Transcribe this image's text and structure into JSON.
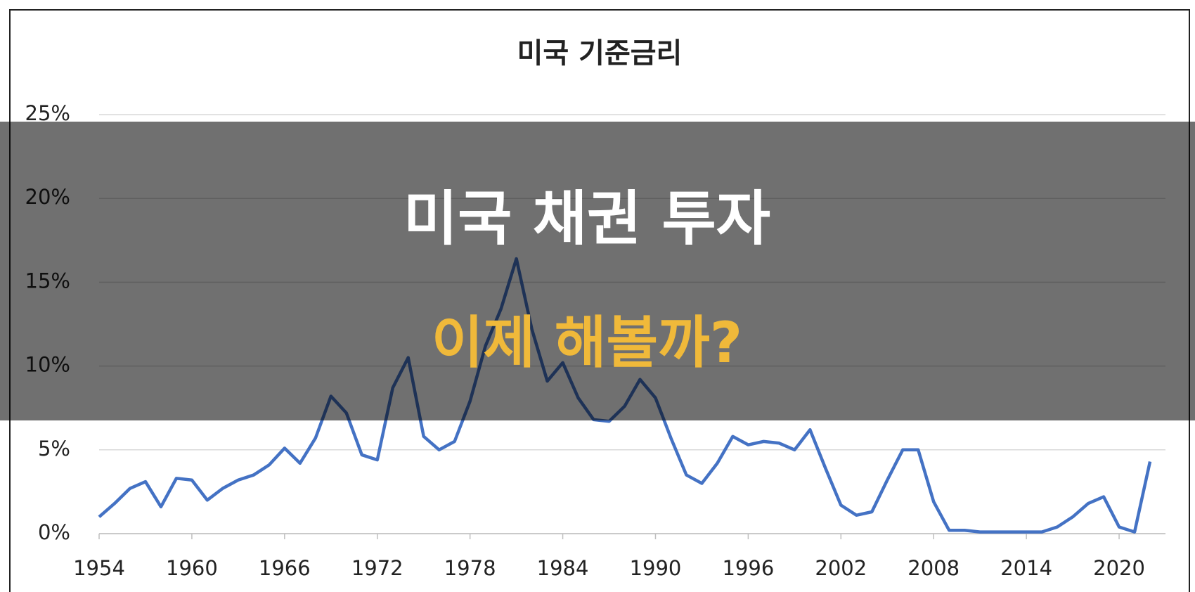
{
  "chart_data": {
    "type": "line",
    "title": "미국 기준금리",
    "x": [
      1954,
      1955,
      1956,
      1957,
      1958,
      1959,
      1960,
      1961,
      1962,
      1963,
      1964,
      1965,
      1966,
      1967,
      1968,
      1969,
      1970,
      1971,
      1972,
      1973,
      1974,
      1975,
      1976,
      1977,
      1978,
      1979,
      1980,
      1981,
      1982,
      1983,
      1984,
      1985,
      1986,
      1987,
      1988,
      1989,
      1990,
      1991,
      1992,
      1993,
      1994,
      1995,
      1996,
      1997,
      1998,
      1999,
      2000,
      2001,
      2002,
      2003,
      2004,
      2005,
      2006,
      2007,
      2008,
      2009,
      2010,
      2011,
      2012,
      2013,
      2014,
      2015,
      2016,
      2017,
      2018,
      2019,
      2020,
      2021,
      2022
    ],
    "series": [
      {
        "name": "기준금리",
        "color": "#4472c4",
        "values": [
          1.0,
          1.8,
          2.7,
          3.1,
          1.6,
          3.3,
          3.2,
          2.0,
          2.7,
          3.2,
          3.5,
          4.1,
          5.1,
          4.2,
          5.7,
          8.2,
          7.2,
          4.7,
          4.4,
          8.7,
          10.5,
          5.8,
          5.0,
          5.5,
          7.9,
          11.2,
          13.4,
          16.4,
          12.2,
          9.1,
          10.2,
          8.1,
          6.8,
          6.7,
          7.6,
          9.2,
          8.1,
          5.7,
          3.5,
          3.0,
          4.2,
          5.8,
          5.3,
          5.5,
          5.4,
          5.0,
          6.2,
          3.9,
          1.7,
          1.1,
          1.3,
          3.2,
          5.0,
          5.0,
          1.9,
          0.2,
          0.2,
          0.1,
          0.1,
          0.1,
          0.1,
          0.1,
          0.4,
          1.0,
          1.8,
          2.2,
          0.4,
          0.1,
          4.3
        ]
      }
    ],
    "xlim": [
      1954,
      2023
    ],
    "xticks": [
      1954,
      1960,
      1966,
      1972,
      1978,
      1984,
      1990,
      1996,
      2002,
      2008,
      2014,
      2020
    ],
    "ylim": [
      0,
      25
    ],
    "yticks": [
      {
        "value": 0,
        "label": "0%"
      },
      {
        "value": 5,
        "label": "5%"
      },
      {
        "value": 10,
        "label": "10%"
      },
      {
        "value": 15,
        "label": "15%"
      },
      {
        "value": 20,
        "label": "20%"
      },
      {
        "value": 25,
        "label": "25%"
      }
    ],
    "grid": true
  },
  "overlay": {
    "headline": "미국 채권 투자",
    "subheadline": "이제 해볼까?"
  }
}
